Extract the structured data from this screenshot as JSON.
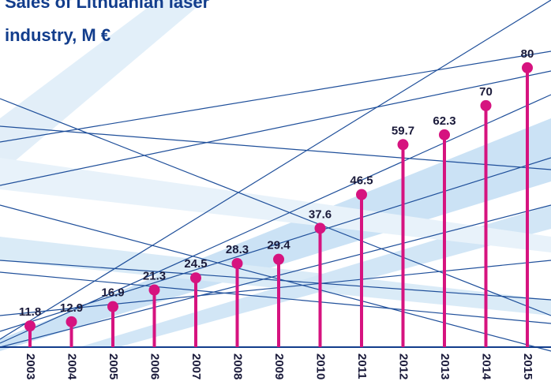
{
  "chart_data": {
    "type": "lollipop",
    "title_lines": [
      "Sales of Lithuanian laser",
      "industry, M €"
    ],
    "categories": [
      "2003",
      "2004",
      "2005",
      "2006",
      "2007",
      "2008",
      "2009",
      "2010",
      "2011",
      "2012",
      "2013",
      "2014",
      "2015"
    ],
    "values": [
      11.8,
      12.9,
      16.9,
      21.3,
      24.5,
      28.3,
      29.4,
      37.6,
      46.5,
      59.7,
      62.3,
      70,
      80
    ],
    "color": "#d6137f",
    "ylim": [
      6.2,
      97.9
    ]
  }
}
